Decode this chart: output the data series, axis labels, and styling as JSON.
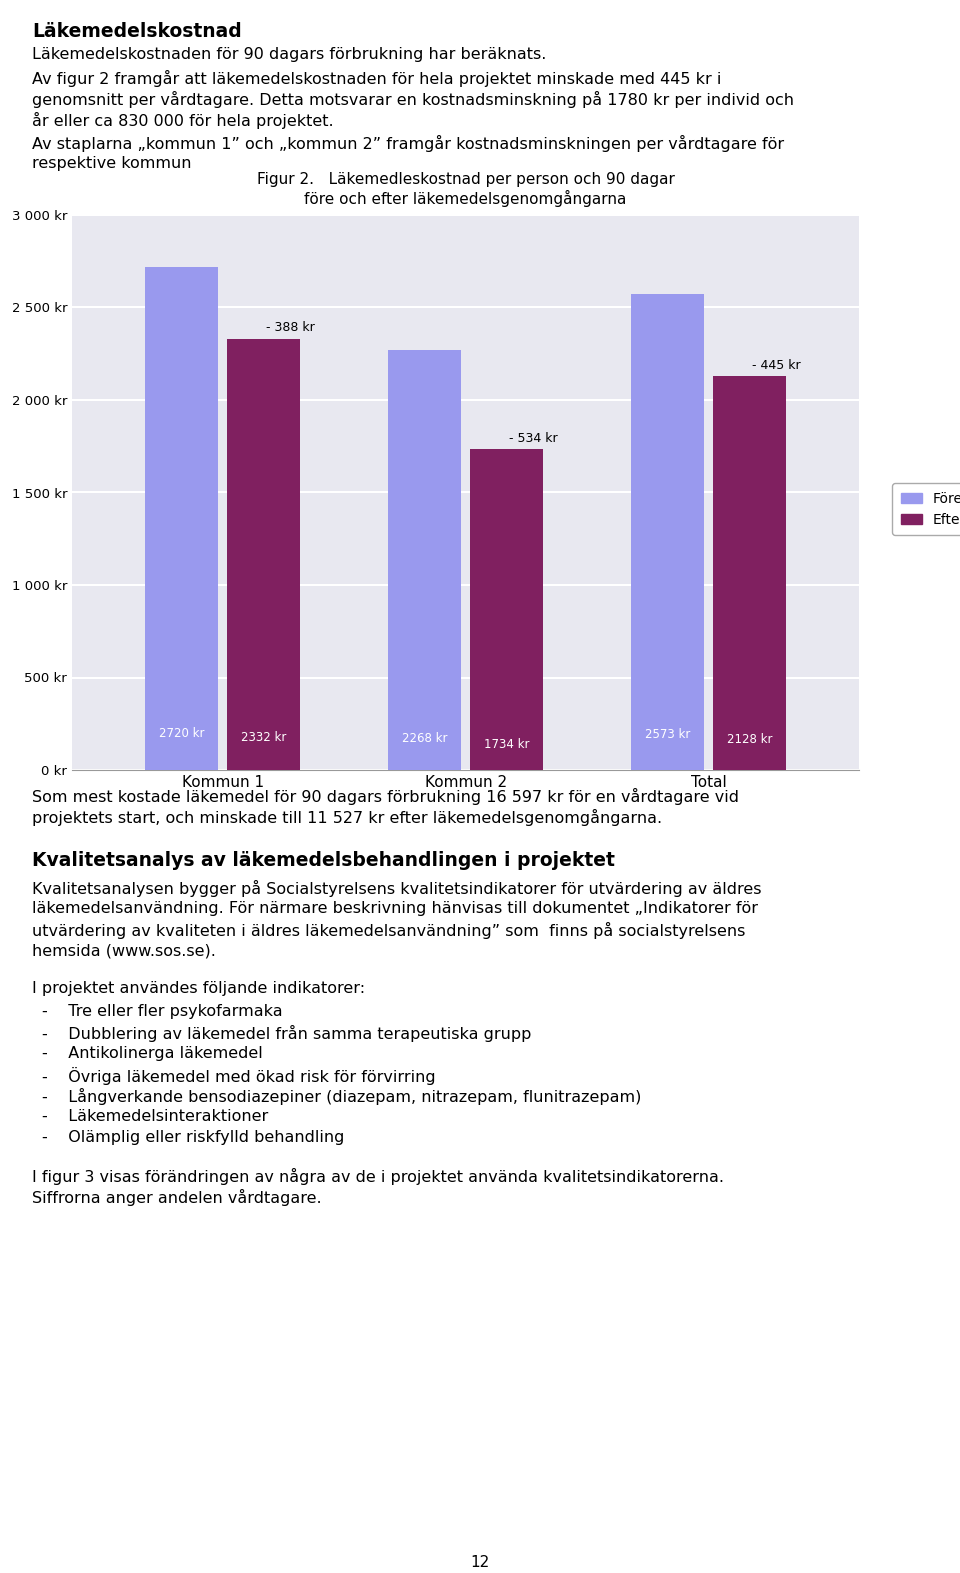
{
  "title_line1": "Figur 2.   Läkemedleskostnad per person och 90 dagar",
  "title_line2": "före och efter läkemedelsgenomgångarna",
  "categories": [
    "Kommun 1",
    "Kommun 2",
    "Total"
  ],
  "fore_values": [
    2720,
    2268,
    2573
  ],
  "efter_values": [
    2332,
    1734,
    2128
  ],
  "diff_values": [
    "- 388 kr",
    "- 534 kr",
    "- 445 kr"
  ],
  "fore_labels": [
    "2720 kr",
    "2268 kr",
    "2573 kr"
  ],
  "efter_labels": [
    "2332 kr",
    "1734 kr",
    "2128 kr"
  ],
  "fore_color": "#9999ee",
  "efter_color": "#802060",
  "yticks": [
    0,
    500,
    1000,
    1500,
    2000,
    2500,
    3000
  ],
  "ytick_labels": [
    "0 kr",
    "500 kr",
    "1 000 kr",
    "1 500 kr",
    "2 000 kr",
    "2 500 kr",
    "3 000 kr"
  ],
  "ylim": [
    0,
    3000
  ],
  "legend_fore": "Före",
  "legend_efter": "Efter",
  "background_color": "#ffffff",
  "chart_bg_color": "#e8e8f0",
  "grid_color": "white",
  "page_number": "12",
  "heading": "Läkemedelskostnad",
  "para1": "Läkemedelskostnaden för 90 dagars förbrukning har beräknats.",
  "para2_line1": "Av figur 2 framgår att läkemedelskostnaden för hela projektet minskade med 445 kr i",
  "para2_line2": "genomsnitt per vårdtagare. Detta motsvarar en kostnadsminskning på 1780 kr per individ och",
  "para2_line3": "år eller ca 830 000 för hela projektet.",
  "para3_line1": "Av staplarna „kommun 1” och „kommun 2” framgår kostnadsminskningen per vårdtagare för",
  "para3_line2": "respektive kommun",
  "para4_line1": "Som mest kostade läkemedel för 90 dagars förbrukning 16 597 kr för en vårdtagare vid",
  "para4_line2": "projektets start, och minskade till 11 527 kr efter läkemedelsgenomgångarna.",
  "heading2": "Kvalitetsanalys av läkemedelsbehandlingen i projektet",
  "para5_line1": "Kvalitetsanalysen bygger på Socialstyrelsens kvalitetsindikatorer för utvärdering av äldres",
  "para5_line2": "läkemedelsanvändning. För närmare beskrivning hänvisas till dokumentet „Indikatorer för",
  "para5_line3": "utvärdering av kvaliteten i äldres läkemedelsanvändning” som  finns på socialstyrelsens",
  "para5_line4": "hemsida (www.sos.se).",
  "para6": "I projektet användes följande indikatorer:",
  "bullets": [
    "Tre eller fler psykofarmaka",
    "Dubblering av läkemedel från samma terapeutiska grupp",
    "Antikolinerga läkemedel",
    "Övriga läkemedel med ökad risk för förvirring",
    "Långverkande bensodiazepiner (diazepam, nitrazepam, flunitrazepam)",
    "Läkemedelsinteraktioner",
    "Olämplig eller riskfylld behandling"
  ],
  "para7_line1": "I figur 3 visas förändringen av några av de i projektet använda kvalitetsindikatorerna.",
  "para7_line2": "Siffrorna anger andelen vårdtagare."
}
